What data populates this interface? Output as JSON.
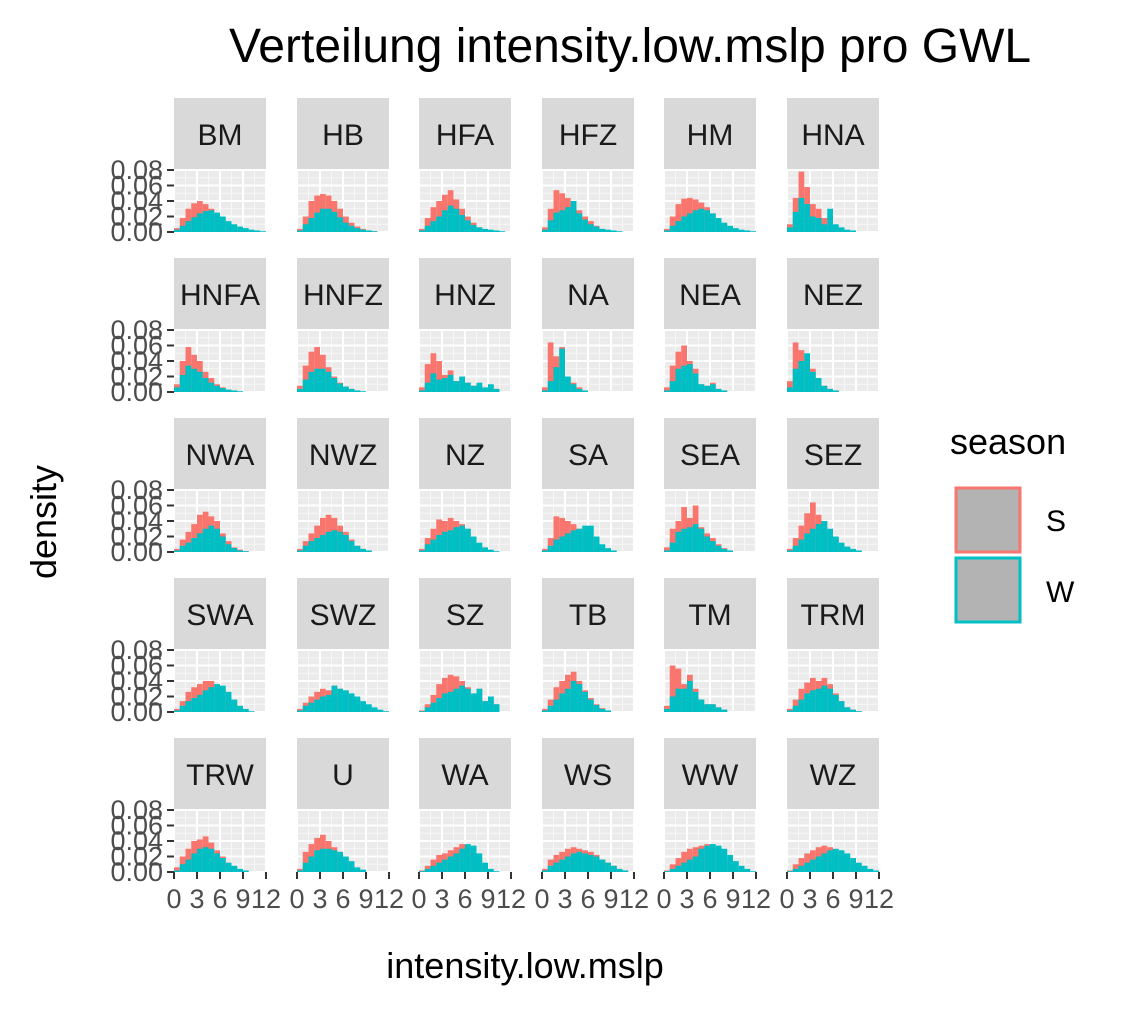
{
  "chart_data": {
    "type": "bar",
    "subtype": "faceted overlapping histogram",
    "title": "Verteilung intensity.low.mslp pro GWL",
    "xlabel": "intensity.low.mslp",
    "ylabel": "density",
    "xlim": [
      0,
      12
    ],
    "ylim": [
      0,
      0.08
    ],
    "x_ticks": [
      "0",
      "3",
      "6",
      "9",
      "12"
    ],
    "y_ticks": [
      "0.00",
      "0.02",
      "0.04",
      "0.06",
      "0.08"
    ],
    "bin_edges": [
      0,
      0.75,
      1.5,
      2.25,
      3,
      3.75,
      4.5,
      5.25,
      6,
      6.75,
      7.5,
      8.25,
      9,
      9.75,
      10.5,
      11.25,
      12
    ],
    "grid": true,
    "legend": {
      "title": "season",
      "position": "right",
      "entries": [
        {
          "label": "S",
          "color": "#F8766D"
        },
        {
          "label": "W",
          "color": "#00BFC4"
        }
      ]
    },
    "facets": [
      {
        "label": "BM",
        "S": [
          0.005,
          0.018,
          0.03,
          0.037,
          0.04,
          0.036,
          0.03,
          0.022,
          0.015,
          0.01,
          0.006,
          0.004,
          0.002,
          0.001,
          0,
          0
        ],
        "W": [
          0.003,
          0.008,
          0.014,
          0.019,
          0.024,
          0.027,
          0.028,
          0.025,
          0.02,
          0.014,
          0.01,
          0.007,
          0.005,
          0.003,
          0.002,
          0.001
        ]
      },
      {
        "label": "HB",
        "S": [
          0.004,
          0.02,
          0.04,
          0.047,
          0.049,
          0.047,
          0.04,
          0.03,
          0.02,
          0.012,
          0.007,
          0.004,
          0.002,
          0.001,
          0,
          0
        ],
        "W": [
          0.002,
          0.01,
          0.018,
          0.025,
          0.03,
          0.03,
          0.026,
          0.019,
          0.012,
          0.008,
          0.005,
          0.003,
          0.002,
          0.001,
          0,
          0
        ]
      },
      {
        "label": "HFA",
        "S": [
          0.004,
          0.018,
          0.032,
          0.04,
          0.048,
          0.054,
          0.042,
          0.03,
          0.02,
          0.012,
          0.006,
          0.003,
          0.001,
          0,
          0,
          0
        ],
        "W": [
          0.002,
          0.008,
          0.014,
          0.02,
          0.028,
          0.034,
          0.03,
          0.022,
          0.015,
          0.009,
          0.006,
          0.004,
          0.003,
          0.002,
          0.001,
          0
        ]
      },
      {
        "label": "HFZ",
        "S": [
          0.006,
          0.03,
          0.054,
          0.05,
          0.044,
          0.036,
          0.028,
          0.02,
          0.014,
          0.008,
          0.004,
          0.002,
          0,
          0,
          0,
          0
        ],
        "W": [
          0.003,
          0.015,
          0.025,
          0.028,
          0.032,
          0.04,
          0.024,
          0.016,
          0.01,
          0.007,
          0.004,
          0.003,
          0.002,
          0.001,
          0,
          0
        ]
      },
      {
        "label": "HM",
        "S": [
          0.004,
          0.02,
          0.036,
          0.043,
          0.044,
          0.042,
          0.038,
          0.032,
          0.024,
          0.016,
          0.01,
          0.006,
          0.003,
          0.001,
          0,
          0
        ],
        "W": [
          0.002,
          0.008,
          0.014,
          0.02,
          0.024,
          0.028,
          0.03,
          0.028,
          0.024,
          0.018,
          0.012,
          0.008,
          0.005,
          0.003,
          0.002,
          0.001
        ]
      },
      {
        "label": "HNA",
        "S": [
          0.01,
          0.044,
          0.078,
          0.058,
          0.036,
          0.03,
          0.018,
          0.01,
          0.006,
          0.004,
          0,
          0,
          0,
          0,
          0,
          0
        ],
        "W": [
          0.006,
          0.026,
          0.044,
          0.036,
          0.02,
          0.018,
          0.01,
          0.03,
          0.01,
          0.006,
          0.003,
          0.002,
          0,
          0,
          0,
          0
        ]
      },
      {
        "label": "HNFA",
        "S": [
          0.01,
          0.04,
          0.058,
          0.048,
          0.04,
          0.026,
          0.018,
          0.01,
          0.006,
          0.003,
          0.002,
          0,
          0,
          0,
          0,
          0
        ],
        "W": [
          0.006,
          0.022,
          0.034,
          0.03,
          0.026,
          0.018,
          0.012,
          0.008,
          0.005,
          0.003,
          0.002,
          0.001,
          0,
          0,
          0,
          0
        ]
      },
      {
        "label": "HNFZ",
        "S": [
          0.008,
          0.034,
          0.052,
          0.058,
          0.048,
          0.032,
          0.02,
          0.012,
          0.007,
          0.004,
          0.002,
          0,
          0,
          0,
          0,
          0
        ],
        "W": [
          0.004,
          0.016,
          0.026,
          0.03,
          0.03,
          0.026,
          0.018,
          0.011,
          0.007,
          0.004,
          0.002,
          0.001,
          0,
          0,
          0,
          0
        ]
      },
      {
        "label": "HNZ",
        "S": [
          0.006,
          0.036,
          0.05,
          0.04,
          0.022,
          0.028,
          0.014,
          0.01,
          0.012,
          0.008,
          0.01,
          0.004,
          0.008,
          0.004,
          0,
          0
        ],
        "W": [
          0.002,
          0.012,
          0.024,
          0.016,
          0.018,
          0.022,
          0.014,
          0.02,
          0.012,
          0.008,
          0.012,
          0.006,
          0.01,
          0.004,
          0,
          0
        ]
      },
      {
        "label": "NA",
        "S": [
          0.006,
          0.064,
          0.046,
          0.058,
          0.02,
          0.012,
          0.006,
          0.002,
          0,
          0,
          0,
          0,
          0,
          0,
          0,
          0
        ],
        "W": [
          0.002,
          0.014,
          0.032,
          0.056,
          0.02,
          0.01,
          0.004,
          0.002,
          0,
          0,
          0,
          0,
          0,
          0,
          0,
          0
        ]
      },
      {
        "label": "NEA",
        "S": [
          0.006,
          0.034,
          0.052,
          0.06,
          0.04,
          0.03,
          0.01,
          0.008,
          0.012,
          0.004,
          0.002,
          0,
          0,
          0,
          0,
          0
        ],
        "W": [
          0.002,
          0.014,
          0.03,
          0.034,
          0.036,
          0.024,
          0.01,
          0.008,
          0.01,
          0.004,
          0.002,
          0,
          0,
          0,
          0,
          0
        ]
      },
      {
        "label": "NEZ",
        "S": [
          0.014,
          0.064,
          0.054,
          0.046,
          0.03,
          0.018,
          0.008,
          0.004,
          0.002,
          0,
          0,
          0,
          0,
          0,
          0,
          0
        ],
        "W": [
          0.006,
          0.03,
          0.04,
          0.05,
          0.026,
          0.018,
          0.008,
          0.004,
          0.002,
          0,
          0,
          0,
          0,
          0,
          0,
          0
        ]
      },
      {
        "label": "NWA",
        "S": [
          0.004,
          0.016,
          0.026,
          0.036,
          0.048,
          0.052,
          0.046,
          0.04,
          0.024,
          0.014,
          0.006,
          0.003,
          0.001,
          0,
          0,
          0
        ],
        "W": [
          0.002,
          0.008,
          0.012,
          0.018,
          0.024,
          0.03,
          0.034,
          0.03,
          0.02,
          0.01,
          0.005,
          0.002,
          0.001,
          0,
          0,
          0
        ]
      },
      {
        "label": "NWZ",
        "S": [
          0.004,
          0.014,
          0.024,
          0.034,
          0.044,
          0.048,
          0.044,
          0.034,
          0.026,
          0.016,
          0.008,
          0.004,
          0.002,
          0,
          0,
          0
        ],
        "W": [
          0.002,
          0.008,
          0.014,
          0.018,
          0.022,
          0.026,
          0.028,
          0.026,
          0.022,
          0.014,
          0.008,
          0.004,
          0.002,
          0,
          0,
          0
        ]
      },
      {
        "label": "NZ",
        "S": [
          0.004,
          0.018,
          0.03,
          0.042,
          0.04,
          0.044,
          0.04,
          0.036,
          0.03,
          0.018,
          0.01,
          0.004,
          0.002,
          0,
          0,
          0
        ],
        "W": [
          0.002,
          0.01,
          0.016,
          0.022,
          0.026,
          0.028,
          0.032,
          0.034,
          0.03,
          0.02,
          0.012,
          0.006,
          0.003,
          0.001,
          0,
          0
        ]
      },
      {
        "label": "SA",
        "S": [
          0.004,
          0.018,
          0.046,
          0.044,
          0.04,
          0.036,
          0.03,
          0.026,
          0.02,
          0.012,
          0.006,
          0.003,
          0,
          0,
          0,
          0
        ],
        "W": [
          0.002,
          0.008,
          0.016,
          0.02,
          0.024,
          0.028,
          0.03,
          0.034,
          0.034,
          0.02,
          0.01,
          0.005,
          0.002,
          0,
          0,
          0
        ]
      },
      {
        "label": "SEA",
        "S": [
          0.006,
          0.03,
          0.04,
          0.058,
          0.044,
          0.06,
          0.032,
          0.024,
          0.018,
          0.01,
          0.005,
          0.002,
          0,
          0,
          0,
          0
        ],
        "W": [
          0.002,
          0.012,
          0.026,
          0.03,
          0.032,
          0.036,
          0.03,
          0.02,
          0.014,
          0.008,
          0.004,
          0.002,
          0,
          0,
          0,
          0
        ]
      },
      {
        "label": "SEZ",
        "S": [
          0.004,
          0.018,
          0.034,
          0.05,
          0.064,
          0.048,
          0.04,
          0.026,
          0.016,
          0.01,
          0.006,
          0.003,
          0.001,
          0,
          0,
          0
        ],
        "W": [
          0.002,
          0.008,
          0.016,
          0.024,
          0.03,
          0.036,
          0.04,
          0.03,
          0.02,
          0.012,
          0.007,
          0.004,
          0.002,
          0,
          0,
          0
        ]
      },
      {
        "label": "SWA",
        "S": [
          0.004,
          0.014,
          0.026,
          0.032,
          0.036,
          0.04,
          0.04,
          0.034,
          0.03,
          0.02,
          0.012,
          0.006,
          0.002,
          0,
          0,
          0
        ],
        "W": [
          0.002,
          0.008,
          0.014,
          0.018,
          0.022,
          0.028,
          0.032,
          0.036,
          0.034,
          0.026,
          0.016,
          0.008,
          0.004,
          0.001,
          0,
          0
        ]
      },
      {
        "label": "SWZ",
        "S": [
          0.004,
          0.012,
          0.02,
          0.026,
          0.03,
          0.028,
          0.034,
          0.03,
          0.026,
          0.022,
          0.016,
          0.01,
          0.006,
          0.004,
          0.002,
          0
        ],
        "W": [
          0.002,
          0.008,
          0.012,
          0.016,
          0.02,
          0.022,
          0.034,
          0.03,
          0.028,
          0.024,
          0.02,
          0.014,
          0.01,
          0.006,
          0.003,
          0.001
        ]
      },
      {
        "label": "SZ",
        "S": [
          0.002,
          0.01,
          0.022,
          0.036,
          0.044,
          0.048,
          0.046,
          0.04,
          0.032,
          0.022,
          0.03,
          0.014,
          0.02,
          0.01,
          0,
          0
        ],
        "W": [
          0.001,
          0.006,
          0.012,
          0.018,
          0.024,
          0.026,
          0.03,
          0.034,
          0.03,
          0.024,
          0.03,
          0.014,
          0.02,
          0.01,
          0,
          0
        ]
      },
      {
        "label": "TB",
        "S": [
          0.004,
          0.016,
          0.032,
          0.04,
          0.048,
          0.052,
          0.04,
          0.028,
          0.018,
          0.01,
          0.005,
          0.002,
          0,
          0,
          0,
          0
        ],
        "W": [
          0.002,
          0.008,
          0.016,
          0.024,
          0.03,
          0.04,
          0.036,
          0.026,
          0.016,
          0.009,
          0.004,
          0.002,
          0,
          0,
          0,
          0
        ]
      },
      {
        "label": "TM",
        "S": [
          0.008,
          0.06,
          0.056,
          0.036,
          0.048,
          0.03,
          0.016,
          0.01,
          0.01,
          0.006,
          0.003,
          0,
          0,
          0,
          0,
          0
        ],
        "W": [
          0.004,
          0.02,
          0.03,
          0.03,
          0.04,
          0.026,
          0.016,
          0.01,
          0.01,
          0.006,
          0.003,
          0,
          0,
          0,
          0,
          0
        ]
      },
      {
        "label": "TRM",
        "S": [
          0.004,
          0.016,
          0.03,
          0.038,
          0.044,
          0.04,
          0.044,
          0.036,
          0.024,
          0.014,
          0.006,
          0.003,
          0.001,
          0,
          0,
          0
        ],
        "W": [
          0.002,
          0.008,
          0.016,
          0.024,
          0.028,
          0.03,
          0.034,
          0.03,
          0.022,
          0.014,
          0.006,
          0.003,
          0.001,
          0,
          0,
          0
        ]
      },
      {
        "label": "TRW",
        "S": [
          0.006,
          0.02,
          0.03,
          0.04,
          0.042,
          0.046,
          0.038,
          0.028,
          0.02,
          0.012,
          0.006,
          0.003,
          0,
          0,
          0,
          0
        ],
        "W": [
          0.002,
          0.01,
          0.016,
          0.024,
          0.03,
          0.032,
          0.03,
          0.024,
          0.018,
          0.012,
          0.008,
          0.004,
          0.002,
          0,
          0,
          0
        ]
      },
      {
        "label": "U",
        "S": [
          0.004,
          0.026,
          0.036,
          0.044,
          0.048,
          0.04,
          0.032,
          0.026,
          0.016,
          0.01,
          0.004,
          0.002,
          0,
          0,
          0,
          0
        ],
        "W": [
          0.002,
          0.012,
          0.02,
          0.028,
          0.03,
          0.03,
          0.028,
          0.026,
          0.02,
          0.014,
          0.006,
          0.003,
          0,
          0,
          0,
          0
        ]
      },
      {
        "label": "WA",
        "S": [
          0.002,
          0.008,
          0.016,
          0.022,
          0.024,
          0.028,
          0.032,
          0.036,
          0.034,
          0.024,
          0.014,
          0.006,
          0.002,
          0,
          0,
          0
        ],
        "W": [
          0.001,
          0.004,
          0.008,
          0.012,
          0.016,
          0.02,
          0.024,
          0.03,
          0.036,
          0.034,
          0.024,
          0.012,
          0.004,
          0.001,
          0,
          0
        ]
      },
      {
        "label": "WS",
        "S": [
          0.004,
          0.016,
          0.022,
          0.026,
          0.03,
          0.032,
          0.03,
          0.028,
          0.026,
          0.022,
          0.016,
          0.012,
          0.008,
          0.004,
          0.002,
          0
        ],
        "W": [
          0.002,
          0.008,
          0.012,
          0.016,
          0.02,
          0.024,
          0.026,
          0.024,
          0.022,
          0.02,
          0.016,
          0.012,
          0.008,
          0.004,
          0.002,
          0
        ]
      },
      {
        "label": "WW",
        "S": [
          0.002,
          0.01,
          0.018,
          0.026,
          0.03,
          0.032,
          0.034,
          0.036,
          0.032,
          0.024,
          0.016,
          0.008,
          0.004,
          0.002,
          0,
          0
        ],
        "W": [
          0.001,
          0.004,
          0.008,
          0.012,
          0.016,
          0.02,
          0.03,
          0.034,
          0.036,
          0.034,
          0.03,
          0.022,
          0.014,
          0.008,
          0.004,
          0.001
        ]
      },
      {
        "label": "WZ",
        "S": [
          0.002,
          0.01,
          0.018,
          0.024,
          0.028,
          0.032,
          0.034,
          0.032,
          0.028,
          0.022,
          0.016,
          0.01,
          0.006,
          0.003,
          0.001,
          0
        ],
        "W": [
          0.001,
          0.004,
          0.008,
          0.012,
          0.016,
          0.02,
          0.024,
          0.028,
          0.03,
          0.028,
          0.024,
          0.018,
          0.012,
          0.008,
          0.004,
          0.002
        ]
      }
    ]
  }
}
